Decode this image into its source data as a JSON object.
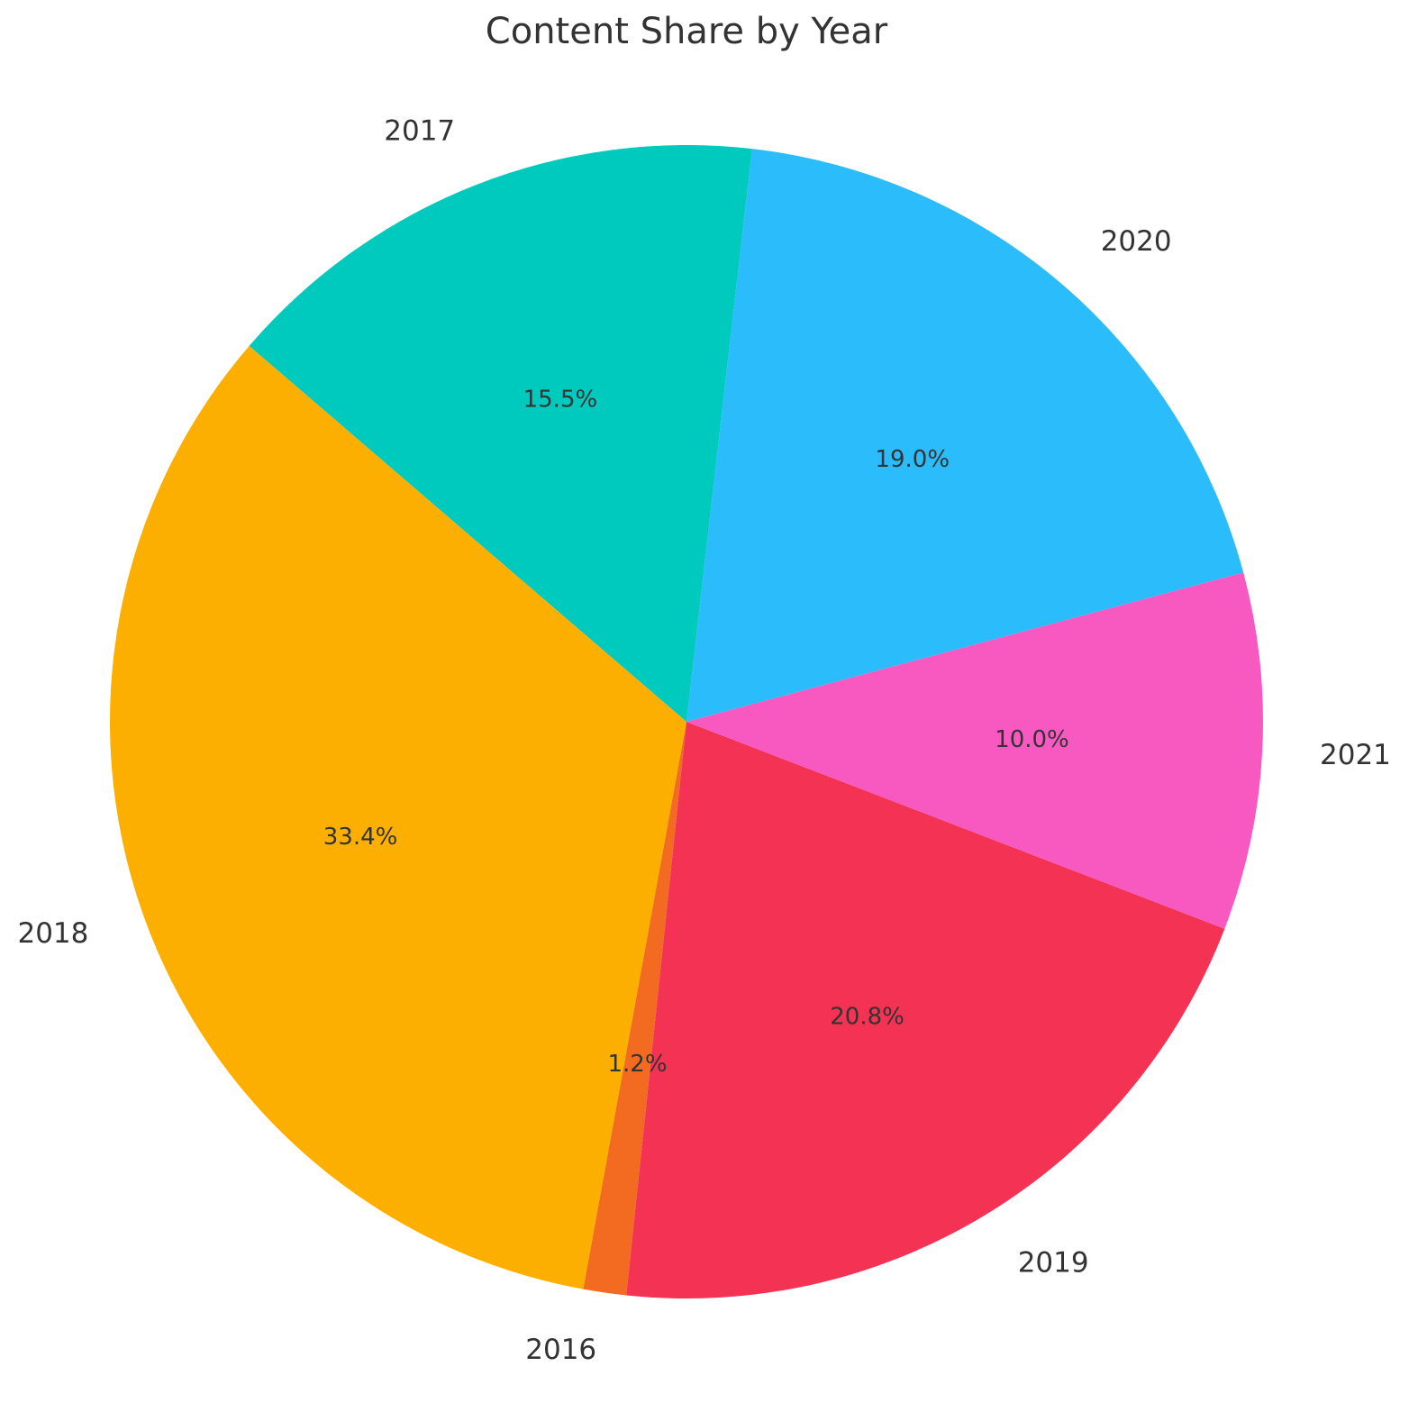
{
  "chart_data": {
    "type": "pie",
    "title": "Content Share by Year",
    "categories": [
      "2016",
      "2017",
      "2018",
      "2019",
      "2020",
      "2021"
    ],
    "values": [
      1.2,
      15.5,
      33.4,
      20.8,
      19.0,
      10.0
    ],
    "pct_labels": [
      "1.2%",
      "15.5%",
      "33.4%",
      "20.8%",
      "19.0%",
      "10.0%"
    ],
    "colors": [
      "#F26B21",
      "#00C9BE",
      "#FDAF00",
      "#F43253",
      "#2BBCFC",
      "#F859C1"
    ],
    "slice_order": [
      "2020",
      "2017",
      "2018",
      "2016",
      "2019",
      "2021"
    ],
    "start_angle_deg": 15,
    "direction": "counterclockwise",
    "legend": "none"
  }
}
